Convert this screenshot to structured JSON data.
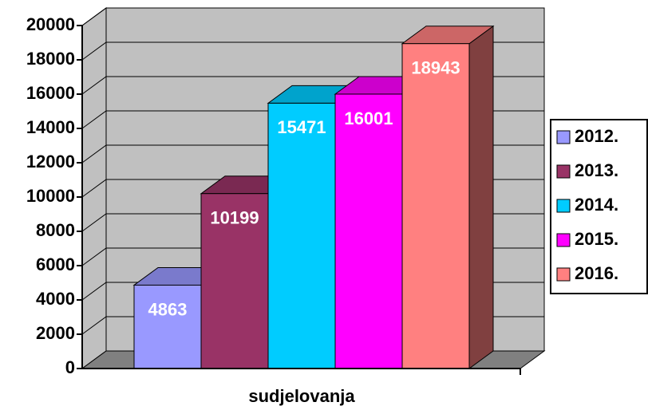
{
  "chart_data": {
    "type": "bar",
    "categories": [
      "sudjelovanja"
    ],
    "series": [
      {
        "name": "2012.",
        "color": "#9999ff",
        "values": [
          4863
        ]
      },
      {
        "name": "2013.",
        "color": "#993366",
        "values": [
          10199
        ]
      },
      {
        "name": "2014.",
        "color": "#00ccff",
        "values": [
          15471
        ]
      },
      {
        "name": "2015.",
        "color": "#ff00ff",
        "values": [
          16001
        ]
      },
      {
        "name": "2016.",
        "color": "#ff8080",
        "values": [
          18943
        ]
      }
    ],
    "ylim": [
      0,
      20000
    ],
    "yticks": [
      0,
      2000,
      4000,
      6000,
      8000,
      10000,
      12000,
      14000,
      16000,
      18000,
      20000
    ],
    "grid": true,
    "legend": "right"
  }
}
